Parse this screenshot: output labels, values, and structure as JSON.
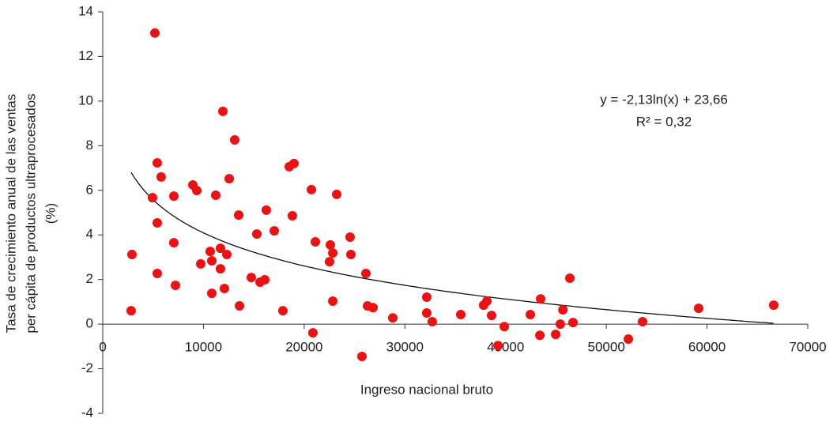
{
  "chart_data": {
    "type": "scatter",
    "x_label": "Ingreso nacional bruto",
    "y_label": [
      "Tasa de crecimiento anual de las ventas",
      "per cápita de productos ultraprocesados",
      "(%)"
    ],
    "annotations": [
      "y = -2,13ln(x) + 23,66",
      "R² = 0,32"
    ],
    "color": "#ee1111",
    "trendline": "logarithmic",
    "xlim": [
      0,
      70000
    ],
    "ylim": [
      -4,
      14
    ],
    "xticks": [
      0,
      10000,
      20000,
      30000,
      40000,
      50000,
      60000,
      70000
    ],
    "yticks": [
      -4,
      -2,
      0,
      2,
      4,
      6,
      8,
      10,
      12,
      14
    ],
    "x": [
      5180,
      11930,
      13100,
      5410,
      18520,
      18990,
      5800,
      12560,
      8950,
      9340,
      20720,
      23230,
      4940,
      7060,
      11220,
      16240,
      13500,
      18830,
      5410,
      17030,
      15300,
      24560,
      21110,
      7060,
      22600,
      11690,
      22840,
      2900,
      10670,
      12320,
      24640,
      10830,
      22520,
      9730,
      11690,
      5410,
      26130,
      14750,
      16090,
      15620,
      46380,
      7220,
      12080,
      10830,
      32170,
      43480,
      22840,
      38140,
      37820,
      13580,
      26290,
      26840,
      66620,
      59170,
      2820,
      17890,
      45690,
      32170,
      35550,
      38610,
      42460,
      28800,
      32720,
      46690,
      53600,
      45430,
      39870,
      20870,
      44970,
      43400,
      52190,
      39240,
      25740
    ],
    "values": [
      13.05,
      9.54,
      8.26,
      7.23,
      7.06,
      7.2,
      6.6,
      6.52,
      6.24,
      5.99,
      6.03,
      5.82,
      5.67,
      5.74,
      5.78,
      5.11,
      4.89,
      4.86,
      4.54,
      4.18,
      4.04,
      3.9,
      3.69,
      3.65,
      3.55,
      3.4,
      3.19,
      3.12,
      3.26,
      3.12,
      3.12,
      2.84,
      2.8,
      2.7,
      2.48,
      2.27,
      2.27,
      2.09,
      1.99,
      1.88,
      2.06,
      1.74,
      1.6,
      1.38,
      1.21,
      1.13,
      1.03,
      1.03,
      0.85,
      0.82,
      0.82,
      0.74,
      0.85,
      0.71,
      0.6,
      0.6,
      0.64,
      0.5,
      0.43,
      0.39,
      0.43,
      0.28,
      0.11,
      0.07,
      0.11,
      0,
      -0.11,
      -0.39,
      -0.46,
      -0.5,
      -0.67,
      -0.96,
      -1.45
    ]
  }
}
